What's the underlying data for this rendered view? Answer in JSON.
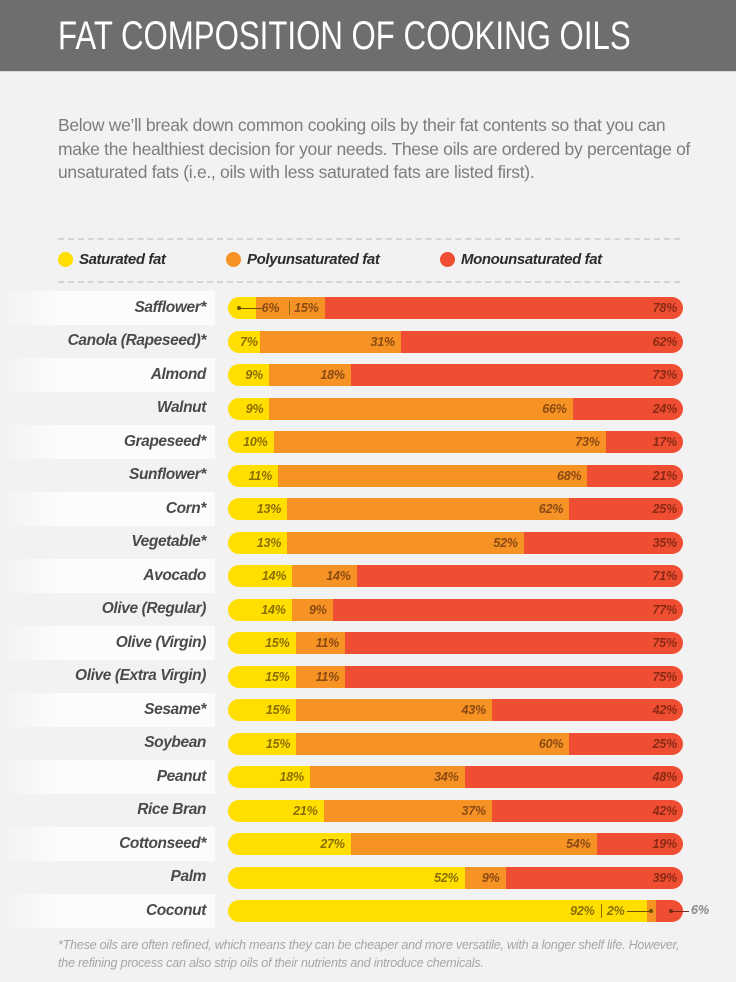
{
  "header": {
    "title": "FAT COMPOSITION OF COOKING OILS"
  },
  "intro": "Below we’ll break down common cooking oils by their fat contents so that you can make the healthiest decision for your needs. These oils are ordered by percentage of unsaturated fats (i.e., oils with less saturated fats are listed first).",
  "colors": {
    "saturated": "#ffde00",
    "polyunsaturated": "#f79225",
    "monounsaturated": "#f04e32",
    "header_bg": "#6d6e6d",
    "page_bg": "#f3f2f2"
  },
  "legend": [
    {
      "key": "saturated",
      "label": "Saturated fat",
      "icon": "yellow-dot-icon"
    },
    {
      "key": "polyunsaturated",
      "label": "Polyunsaturated fat",
      "icon": "orange-dot-icon"
    },
    {
      "key": "monounsaturated",
      "label": "Monounsaturated fat",
      "icon": "red-dot-icon"
    }
  ],
  "chart_data": {
    "type": "bar",
    "orientation": "horizontal",
    "stacked": true,
    "title": "FAT COMPOSITION OF COOKING OILS",
    "xlabel": "",
    "ylabel": "",
    "unit": "%",
    "xlim": [
      0,
      100
    ],
    "grid": false,
    "legend_position": "top",
    "categories": [
      "Safflower*",
      "Canola (Rapeseed)*",
      "Almond",
      "Walnut",
      "Grapeseed*",
      "Sunflower*",
      "Corn*",
      "Vegetable*",
      "Avocado",
      "Olive (Regular)",
      "Olive (Virgin)",
      "Olive (Extra Virgin)",
      "Sesame*",
      "Soybean",
      "Peanut",
      "Rice Bran",
      "Cottonseed*",
      "Palm",
      "Coconut"
    ],
    "series": [
      {
        "name": "Saturated fat",
        "key": "saturated",
        "values": [
          6,
          7,
          9,
          9,
          10,
          11,
          13,
          13,
          14,
          14,
          15,
          15,
          15,
          15,
          18,
          21,
          27,
          52,
          92
        ]
      },
      {
        "name": "Polyunsaturated fat",
        "key": "polyunsaturated",
        "values": [
          15,
          31,
          18,
          66,
          73,
          68,
          62,
          52,
          14,
          9,
          11,
          11,
          43,
          60,
          34,
          37,
          54,
          9,
          2
        ]
      },
      {
        "name": "Monounsaturated fat",
        "key": "monounsaturated",
        "values": [
          78,
          62,
          73,
          24,
          17,
          21,
          25,
          35,
          71,
          77,
          75,
          75,
          42,
          25,
          48,
          42,
          19,
          39,
          6
        ]
      }
    ],
    "annotations": [
      {
        "category": "Safflower*",
        "note": "saturated label 6% shown with leader line"
      },
      {
        "category": "Coconut",
        "note": "2% and 6% labels shown with leader lines; 6% outside bar"
      }
    ]
  },
  "footnote": "*These oils are often refined, which means they can be cheaper and more versatile, with a longer shelf life. However, the refining process can also strip oils of their nutrients and introduce chemicals."
}
